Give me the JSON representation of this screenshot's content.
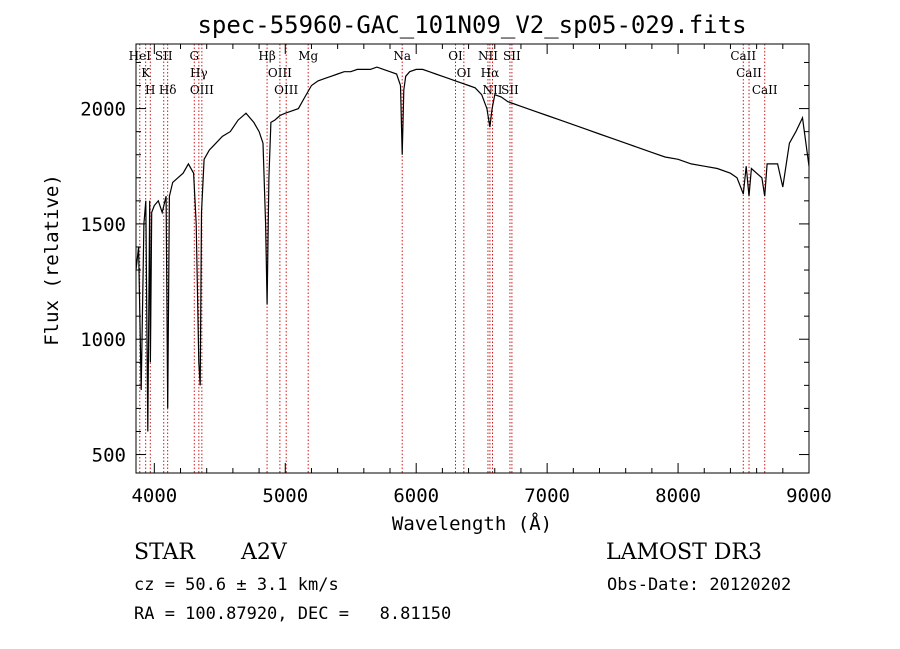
{
  "chart_data": {
    "type": "line",
    "title": "spec-55960-GAC_101N09_V2_sp05-029.fits",
    "xlabel": "Wavelength (Å)",
    "ylabel": "Flux (relative)",
    "xlim": [
      3860,
      9000
    ],
    "ylim": [
      420,
      2280
    ],
    "xticks": [
      4000,
      5000,
      6000,
      7000,
      8000,
      9000
    ],
    "yticks": [
      500,
      1000,
      1500,
      2000
    ],
    "grid": false,
    "series": [
      {
        "x": [
          3860,
          3880,
          3900,
          3920,
          3935,
          3950,
          3965,
          3970,
          3980,
          4000,
          4030,
          4060,
          4090,
          4102,
          4115,
          4140,
          4180,
          4220,
          4260,
          4300,
          4320,
          4340,
          4350,
          4360,
          4380,
          4420,
          4470,
          4520,
          4580,
          4640,
          4700,
          4760,
          4800,
          4830,
          4850,
          4861,
          4875,
          4890,
          4920,
          4960,
          5000,
          5050,
          5100,
          5150,
          5200,
          5250,
          5300,
          5350,
          5400,
          5450,
          5500,
          5550,
          5600,
          5650,
          5700,
          5750,
          5800,
          5850,
          5880,
          5893,
          5905,
          5920,
          5950,
          6000,
          6050,
          6100,
          6150,
          6200,
          6250,
          6300,
          6350,
          6400,
          6450,
          6500,
          6540,
          6563,
          6580,
          6600,
          6650,
          6700,
          6750,
          6800,
          6900,
          7000,
          7100,
          7200,
          7300,
          7400,
          7500,
          7600,
          7700,
          7800,
          7900,
          8000,
          8100,
          8200,
          8300,
          8400,
          8450,
          8498,
          8520,
          8542,
          8560,
          8600,
          8640,
          8662,
          8680,
          8720,
          8760,
          8800,
          8850,
          8900,
          8950,
          9000
        ],
        "values": [
          1300,
          1400,
          780,
          1500,
          1600,
          600,
          1600,
          900,
          1550,
          1580,
          1600,
          1550,
          1620,
          700,
          1620,
          1680,
          1700,
          1720,
          1760,
          1720,
          1500,
          900,
          800,
          1550,
          1780,
          1820,
          1850,
          1880,
          1900,
          1950,
          1980,
          1940,
          1900,
          1850,
          1500,
          1150,
          1700,
          1940,
          1950,
          1970,
          1980,
          1990,
          2000,
          2050,
          2100,
          2120,
          2130,
          2140,
          2150,
          2160,
          2160,
          2170,
          2170,
          2170,
          2180,
          2170,
          2160,
          2150,
          2100,
          1800,
          2080,
          2140,
          2160,
          2170,
          2170,
          2160,
          2150,
          2140,
          2130,
          2120,
          2110,
          2100,
          2090,
          2060,
          2000,
          1920,
          2000,
          2060,
          2050,
          2030,
          2020,
          2010,
          1990,
          1970,
          1950,
          1930,
          1910,
          1890,
          1870,
          1850,
          1830,
          1810,
          1790,
          1780,
          1760,
          1750,
          1740,
          1720,
          1700,
          1630,
          1750,
          1620,
          1740,
          1720,
          1700,
          1620,
          1760,
          1760,
          1760,
          1660,
          1850,
          1900,
          1960,
          1750
        ]
      }
    ],
    "lines": [
      {
        "wave": 3889,
        "label": "HeI"
      },
      {
        "wave": 3934,
        "label": "K"
      },
      {
        "wave": 3969,
        "label": "H"
      },
      {
        "wave": 4072,
        "label": "SII"
      },
      {
        "wave": 4102,
        "label": "Hδ"
      },
      {
        "wave": 4305,
        "label": "G"
      },
      {
        "wave": 4340,
        "label": "Hγ"
      },
      {
        "wave": 4363,
        "label": "OIII"
      },
      {
        "wave": 4861,
        "label": "Hβ"
      },
      {
        "wave": 4959,
        "label": "OIII"
      },
      {
        "wave": 5007,
        "label": "OIII"
      },
      {
        "wave": 5175,
        "label": "Mg"
      },
      {
        "wave": 5893,
        "label": "Na"
      },
      {
        "wave": 6300,
        "label": "OI"
      },
      {
        "wave": 6364,
        "label": "OI"
      },
      {
        "wave": 6548,
        "label": "NII"
      },
      {
        "wave": 6563,
        "label": "Hα"
      },
      {
        "wave": 6583,
        "label": "NII"
      },
      {
        "wave": 6716,
        "label": "SII"
      },
      {
        "wave": 6731,
        "label": "SII"
      },
      {
        "wave": 8498,
        "label": "CaII"
      },
      {
        "wave": 8542,
        "label": "CaII"
      },
      {
        "wave": 8662,
        "label": "CaII"
      }
    ]
  },
  "info": {
    "class": "STAR",
    "subclass": "A2V",
    "survey": "LAMOST DR3",
    "cz": "cz = 50.6 ± 3.1 km/s",
    "obsdate": "Obs-Date: 20120202",
    "coords": "RA = 100.87920, DEC =   8.81150"
  },
  "colors": {
    "spectrum": "#000000",
    "line_marker": "#cc0000"
  }
}
